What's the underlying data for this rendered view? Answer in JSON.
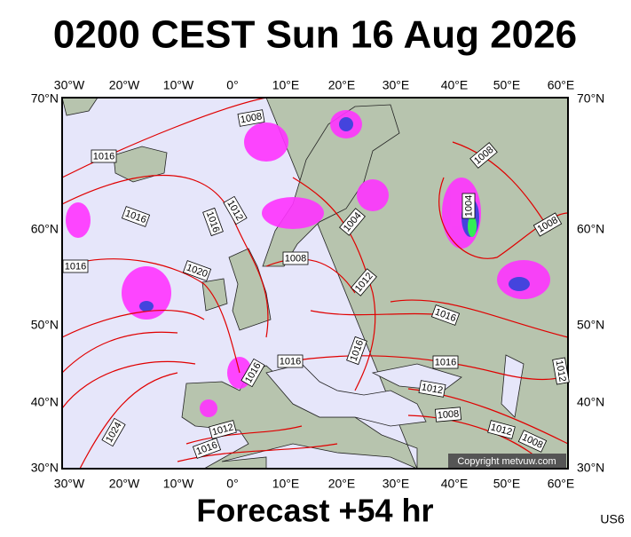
{
  "header": {
    "title": "0200 CEST Sun 16 Aug 2026"
  },
  "map": {
    "lon_labels": [
      "30°W",
      "20°W",
      "10°W",
      "0°",
      "10°E",
      "20°E",
      "30°E",
      "40°E",
      "50°E",
      "60°E"
    ],
    "lat_labels": [
      "70°N",
      "60°N",
      "50°N",
      "40°N",
      "30°N"
    ],
    "isobar_labels": [
      "1008",
      "1016",
      "1016",
      "1012",
      "1016",
      "1016",
      "1020",
      "1008",
      "1004",
      "1012",
      "1004",
      "1008",
      "1008",
      "1016",
      "1016",
      "1016",
      "1016",
      "1016",
      "1012",
      "1008",
      "1012",
      "1008",
      "1012",
      "1012",
      "1016",
      "1024"
    ],
    "copyright": "Copyright metvuw.com"
  },
  "footer": {
    "forecast": "Forecast +54 hr",
    "code": "US6"
  }
}
